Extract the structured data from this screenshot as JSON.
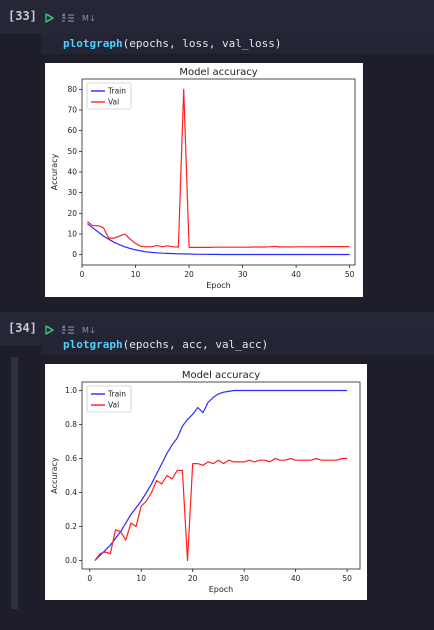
{
  "cells": [
    {
      "number": "[33]",
      "badge": "M↓",
      "code": {
        "fn": "plotgraph",
        "args": "(epochs, loss, val_loss)"
      },
      "chart_data": {
        "type": "line",
        "title": "Model accuracy",
        "xlabel": "Epoch",
        "ylabel": "Accuracy",
        "xlim": [
          0,
          51
        ],
        "ylim": [
          -5,
          85
        ],
        "xticks": [
          0,
          10,
          20,
          30,
          40,
          50
        ],
        "yticks": [
          0,
          10,
          20,
          30,
          40,
          50,
          60,
          70,
          80
        ],
        "legend": "top-left",
        "series": [
          {
            "name": "Train",
            "color": "#2b2bff",
            "x": [
              1,
              2,
              3,
              4,
              5,
              6,
              7,
              8,
              9,
              10,
              11,
              12,
              13,
              14,
              15,
              16,
              17,
              18,
              19,
              20,
              21,
              22,
              23,
              24,
              25,
              26,
              27,
              28,
              29,
              30,
              31,
              32,
              33,
              34,
              35,
              36,
              37,
              38,
              39,
              40,
              41,
              42,
              43,
              44,
              45,
              46,
              47,
              48,
              49,
              50
            ],
            "y": [
              15,
              13,
              11,
              9,
              7.5,
              6,
              4.8,
              3.8,
              3.0,
              2.3,
              1.8,
              1.4,
              1.1,
              0.9,
              0.7,
              0.6,
              0.5,
              0.4,
              0.35,
              0.3,
              0.25,
              0.2,
              0.2,
              0.15,
              0.15,
              0.1,
              0.1,
              0.1,
              0.1,
              0.1,
              0.1,
              0.1,
              0.1,
              0.1,
              0.1,
              0.1,
              0.1,
              0.1,
              0.1,
              0.1,
              0.1,
              0.1,
              0.1,
              0.1,
              0.1,
              0.1,
              0.1,
              0.1,
              0.1,
              0.1
            ]
          },
          {
            "name": "Val",
            "color": "#ff2020",
            "x": [
              1,
              2,
              3,
              4,
              5,
              6,
              7,
              8,
              9,
              10,
              11,
              12,
              13,
              14,
              15,
              16,
              17,
              18,
              19,
              20,
              21,
              22,
              23,
              24,
              25,
              26,
              27,
              28,
              29,
              30,
              31,
              32,
              33,
              34,
              35,
              36,
              37,
              38,
              39,
              40,
              41,
              42,
              43,
              44,
              45,
              46,
              47,
              48,
              49,
              50
            ],
            "y": [
              16,
              14,
              14,
              13,
              8,
              8,
              9,
              10,
              7.5,
              5.5,
              4,
              3.8,
              3.8,
              4.5,
              3.8,
              4.3,
              3.8,
              3.7,
              80,
              3.5,
              3.5,
              3.5,
              3.5,
              3.5,
              3.6,
              3.6,
              3.6,
              3.6,
              3.6,
              3.6,
              3.6,
              3.7,
              3.7,
              3.7,
              3.8,
              4.0,
              3.7,
              3.8,
              3.7,
              3.8,
              3.8,
              3.8,
              3.8,
              3.8,
              3.9,
              3.9,
              3.9,
              3.9,
              3.9,
              3.9
            ]
          }
        ]
      }
    },
    {
      "number": "[34]",
      "badge": "M↓",
      "code": {
        "fn": "plotgraph",
        "args": "(epochs, acc, val_acc)"
      },
      "chart_data": {
        "type": "line",
        "title": "Model accuracy",
        "xlabel": "Epoch",
        "ylabel": "Accuracy",
        "xlim": [
          -1.5,
          52.5
        ],
        "ylim": [
          -0.05,
          1.05
        ],
        "xticks": [
          0,
          10,
          20,
          30,
          40,
          50
        ],
        "yticks": [
          0.0,
          0.2,
          0.4,
          0.6,
          0.8,
          1.0
        ],
        "ytick_labels": [
          "0.0",
          "0.2",
          "0.4",
          "0.6",
          "0.8",
          "1.0"
        ],
        "legend": "top-left",
        "series": [
          {
            "name": "Train",
            "color": "#2b2bff",
            "x": [
              1,
              2,
              3,
              4,
              5,
              6,
              7,
              8,
              9,
              10,
              11,
              12,
              13,
              14,
              15,
              16,
              17,
              18,
              19,
              20,
              21,
              22,
              23,
              24,
              25,
              26,
              27,
              28,
              29,
              30,
              31,
              32,
              33,
              34,
              35,
              36,
              37,
              38,
              39,
              40,
              41,
              42,
              43,
              44,
              45,
              46,
              47,
              48,
              49,
              50
            ],
            "y": [
              0.0,
              0.03,
              0.06,
              0.09,
              0.13,
              0.17,
              0.22,
              0.27,
              0.31,
              0.35,
              0.4,
              0.45,
              0.51,
              0.57,
              0.63,
              0.68,
              0.72,
              0.79,
              0.83,
              0.86,
              0.9,
              0.87,
              0.93,
              0.96,
              0.98,
              0.99,
              0.995,
              1.0,
              1.0,
              1.0,
              1.0,
              1.0,
              1.0,
              1.0,
              1.0,
              1.0,
              1.0,
              1.0,
              1.0,
              1.0,
              1.0,
              1.0,
              1.0,
              1.0,
              1.0,
              1.0,
              1.0,
              1.0,
              1.0,
              1.0
            ]
          },
          {
            "name": "Val",
            "color": "#ff2020",
            "x": [
              1,
              2,
              3,
              4,
              5,
              6,
              7,
              8,
              9,
              10,
              11,
              12,
              13,
              14,
              15,
              16,
              17,
              18,
              19,
              20,
              21,
              22,
              23,
              24,
              25,
              26,
              27,
              28,
              29,
              30,
              31,
              32,
              33,
              34,
              35,
              36,
              37,
              38,
              39,
              40,
              41,
              42,
              43,
              44,
              45,
              46,
              47,
              48,
              49,
              50
            ],
            "y": [
              0.0,
              0.04,
              0.05,
              0.04,
              0.18,
              0.17,
              0.12,
              0.22,
              0.2,
              0.32,
              0.35,
              0.4,
              0.47,
              0.45,
              0.5,
              0.48,
              0.53,
              0.53,
              0.0,
              0.57,
              0.57,
              0.56,
              0.58,
              0.57,
              0.59,
              0.57,
              0.59,
              0.58,
              0.58,
              0.58,
              0.59,
              0.58,
              0.59,
              0.59,
              0.58,
              0.6,
              0.59,
              0.59,
              0.6,
              0.59,
              0.59,
              0.59,
              0.59,
              0.6,
              0.59,
              0.59,
              0.59,
              0.59,
              0.6,
              0.6
            ]
          }
        ]
      }
    }
  ],
  "colors": {
    "run": "#3fd07a",
    "page_bg": "#1e1e2a"
  },
  "icons": {
    "run": "run-cell-icon",
    "mode": "markdown-toggle-icon"
  }
}
